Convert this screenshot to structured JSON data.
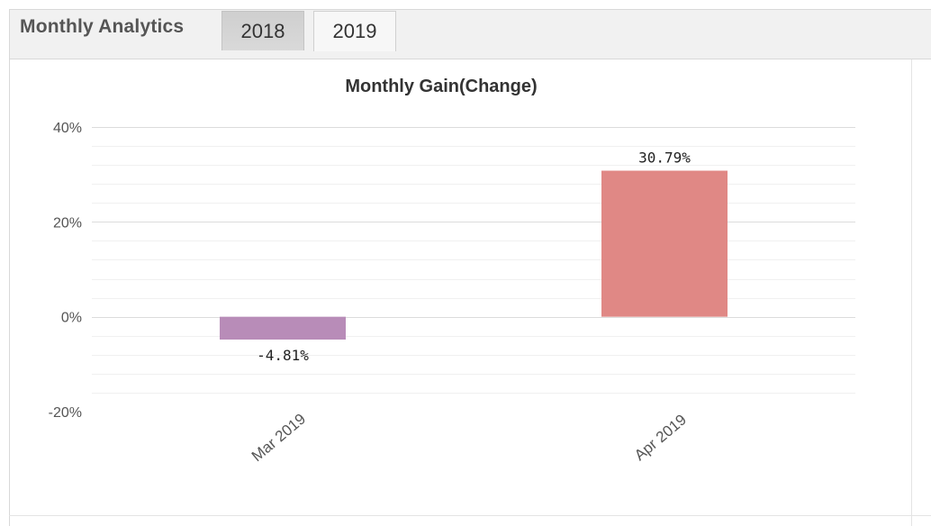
{
  "panel": {
    "title": "Monthly Analytics",
    "tabs": [
      {
        "label": "2018",
        "active": false
      },
      {
        "label": "2019",
        "active": true
      }
    ]
  },
  "chart_data": {
    "type": "bar",
    "title": "Monthly Gain(Change)",
    "xlabel": "",
    "ylabel": "",
    "categories": [
      "Mar 2019",
      "Apr 2019"
    ],
    "values": [
      -4.81,
      30.79
    ],
    "value_labels": [
      "-4.81%",
      "30.79%"
    ],
    "bar_colors": [
      "#b88cb8",
      "#e08885"
    ],
    "ylim": [
      -20,
      40
    ],
    "y_ticks": [
      40,
      20,
      0,
      -20
    ],
    "y_tick_labels": [
      "40%",
      "20%",
      "0%",
      "-20%"
    ],
    "grid": true,
    "legend": "none"
  }
}
